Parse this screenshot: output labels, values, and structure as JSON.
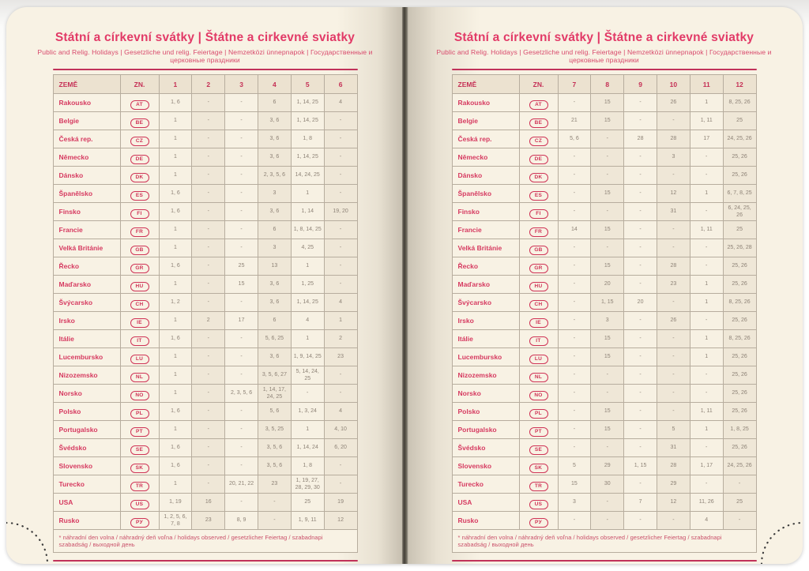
{
  "colors": {
    "accent_red": "#d63a60",
    "title_pink": "#e23a67",
    "page_cream": "#f8f2e4",
    "cell_shade": "#efe7d7",
    "table_border": "#b7ad9e",
    "number_gray": "#8d8276",
    "spine_dark": "#403c33"
  },
  "left_page": {
    "title": "Státní a církevní svátky | Štátne a cirkevné sviatky",
    "subtitle": "Public and Relig. Holidays | Gesetzliche und relig. Feiertage | Nemzetközi ünnepnapok | Государственные и церковные праздники",
    "columns": [
      "ZEMĚ",
      "ZN.",
      "1",
      "2",
      "3",
      "4",
      "5",
      "6"
    ],
    "rows": [
      {
        "country": "Rakousko",
        "code": "AT",
        "months": [
          "1, 6",
          "-",
          "-",
          "6",
          "1, 14, 25",
          "4"
        ]
      },
      {
        "country": "Belgie",
        "code": "BE",
        "months": [
          "1",
          "-",
          "-",
          "3, 6",
          "1, 14, 25",
          "-"
        ]
      },
      {
        "country": "Česká rep.",
        "code": "CZ",
        "months": [
          "1",
          "-",
          "-",
          "3, 6",
          "1, 8",
          "-"
        ]
      },
      {
        "country": "Německo",
        "code": "DE",
        "months": [
          "1",
          "-",
          "-",
          "3, 6",
          "1, 14, 25",
          "-"
        ]
      },
      {
        "country": "Dánsko",
        "code": "DK",
        "months": [
          "1",
          "-",
          "-",
          "2, 3, 5, 6",
          "14, 24, 25",
          "-"
        ]
      },
      {
        "country": "Španělsko",
        "code": "ES",
        "months": [
          "1, 6",
          "-",
          "-",
          "3",
          "1",
          "-"
        ]
      },
      {
        "country": "Finsko",
        "code": "FI",
        "months": [
          "1, 6",
          "-",
          "-",
          "3, 6",
          "1, 14",
          "19, 20"
        ]
      },
      {
        "country": "Francie",
        "code": "FR",
        "months": [
          "1",
          "-",
          "-",
          "6",
          "1, 8, 14, 25",
          "-"
        ]
      },
      {
        "country": "Velká Británie",
        "code": "GB",
        "months": [
          "1",
          "-",
          "-",
          "3",
          "4, 25",
          "-"
        ]
      },
      {
        "country": "Řecko",
        "code": "GR",
        "months": [
          "1, 6",
          "-",
          "25",
          "13",
          "1",
          "-"
        ]
      },
      {
        "country": "Maďarsko",
        "code": "HU",
        "months": [
          "1",
          "-",
          "15",
          "3, 6",
          "1, 25",
          "-"
        ]
      },
      {
        "country": "Švýcarsko",
        "code": "CH",
        "months": [
          "1, 2",
          "-",
          "-",
          "3, 6",
          "1, 14, 25",
          "4"
        ]
      },
      {
        "country": "Irsko",
        "code": "IE",
        "months": [
          "1",
          "2",
          "17",
          "6",
          "4",
          "1"
        ]
      },
      {
        "country": "Itálie",
        "code": "IT",
        "months": [
          "1, 6",
          "-",
          "-",
          "5, 6, 25",
          "1",
          "2"
        ]
      },
      {
        "country": "Lucembursko",
        "code": "LU",
        "months": [
          "1",
          "-",
          "-",
          "3, 6",
          "1, 9, 14, 25",
          "23"
        ]
      },
      {
        "country": "Nizozemsko",
        "code": "NL",
        "months": [
          "1",
          "-",
          "-",
          "3, 5, 6, 27",
          "5, 14, 24, 25",
          "-"
        ]
      },
      {
        "country": "Norsko",
        "code": "NO",
        "months": [
          "1",
          "-",
          "2, 3, 5, 6",
          "1, 14, 17, 24, 25",
          "-",
          "-"
        ]
      },
      {
        "country": "Polsko",
        "code": "PL",
        "months": [
          "1, 6",
          "-",
          "-",
          "5, 6",
          "1, 3, 24",
          "4"
        ]
      },
      {
        "country": "Portugalsko",
        "code": "PT",
        "months": [
          "1",
          "-",
          "-",
          "3, 5, 25",
          "1",
          "4, 10"
        ]
      },
      {
        "country": "Švédsko",
        "code": "SE",
        "months": [
          "1, 6",
          "-",
          "-",
          "3, 5, 6",
          "1, 14, 24",
          "6, 20"
        ]
      },
      {
        "country": "Slovensko",
        "code": "SK",
        "months": [
          "1, 6",
          "-",
          "-",
          "3, 5, 6",
          "1, 8",
          "-"
        ]
      },
      {
        "country": "Turecko",
        "code": "TR",
        "months": [
          "1",
          "-",
          "20, 21, 22",
          "23",
          "1, 19, 27, 28, 29, 30",
          "-"
        ]
      },
      {
        "country": "USA",
        "code": "US",
        "months": [
          "1, 19",
          "16",
          "-",
          "-",
          "25",
          "19"
        ]
      },
      {
        "country": "Rusko",
        "code": "РУ",
        "months": [
          "1, 2, 5, 6, 7, 8",
          "23",
          "8, 9",
          "-",
          "1, 9, 11",
          "12"
        ]
      }
    ],
    "footnote": "* náhradní den volna / náhradný deň voľna / holidays observed / gesetzlicher Feiertag / szabadnapi szabadság / выходной день"
  },
  "right_page": {
    "title": "Státní a církevní svátky | Štátne a cirkevné sviatky",
    "subtitle": "Public and Relig. Holidays | Gesetzliche und relig. Feiertage | Nemzetközi ünnepnapok | Государственные и церковные праздники",
    "columns": [
      "ZEMĚ",
      "ZN.",
      "7",
      "8",
      "9",
      "10",
      "11",
      "12"
    ],
    "rows": [
      {
        "country": "Rakousko",
        "code": "AT",
        "months": [
          "-",
          "15",
          "-",
          "26",
          "1",
          "8, 25, 26"
        ]
      },
      {
        "country": "Belgie",
        "code": "BE",
        "months": [
          "21",
          "15",
          "-",
          "-",
          "1, 11",
          "25"
        ]
      },
      {
        "country": "Česká rep.",
        "code": "CZ",
        "months": [
          "5, 6",
          "-",
          "28",
          "28",
          "17",
          "24, 25, 26"
        ]
      },
      {
        "country": "Německo",
        "code": "DE",
        "months": [
          "-",
          "-",
          "-",
          "3",
          "-",
          "25, 26"
        ]
      },
      {
        "country": "Dánsko",
        "code": "DK",
        "months": [
          "-",
          "-",
          "-",
          "-",
          "-",
          "25, 26"
        ]
      },
      {
        "country": "Španělsko",
        "code": "ES",
        "months": [
          "-",
          "15",
          "-",
          "12",
          "1",
          "6, 7, 8, 25"
        ]
      },
      {
        "country": "Finsko",
        "code": "FI",
        "months": [
          "-",
          "-",
          "-",
          "31",
          "-",
          "6, 24, 25, 26"
        ]
      },
      {
        "country": "Francie",
        "code": "FR",
        "months": [
          "14",
          "15",
          "-",
          "-",
          "1, 11",
          "25"
        ]
      },
      {
        "country": "Velká Británie",
        "code": "GB",
        "months": [
          "-",
          "-",
          "-",
          "-",
          "-",
          "25, 26, 28"
        ]
      },
      {
        "country": "Řecko",
        "code": "GR",
        "months": [
          "-",
          "15",
          "-",
          "28",
          "-",
          "25, 26"
        ]
      },
      {
        "country": "Maďarsko",
        "code": "HU",
        "months": [
          "-",
          "20",
          "-",
          "23",
          "1",
          "25, 26"
        ]
      },
      {
        "country": "Švýcarsko",
        "code": "CH",
        "months": [
          "-",
          "1, 15",
          "20",
          "-",
          "1",
          "8, 25, 26"
        ]
      },
      {
        "country": "Irsko",
        "code": "IE",
        "months": [
          "-",
          "3",
          "-",
          "26",
          "-",
          "25, 26"
        ]
      },
      {
        "country": "Itálie",
        "code": "IT",
        "months": [
          "-",
          "15",
          "-",
          "-",
          "1",
          "8, 25, 26"
        ]
      },
      {
        "country": "Lucembursko",
        "code": "LU",
        "months": [
          "-",
          "15",
          "-",
          "-",
          "1",
          "25, 26"
        ]
      },
      {
        "country": "Nizozemsko",
        "code": "NL",
        "months": [
          "-",
          "-",
          "-",
          "-",
          "-",
          "25, 26"
        ]
      },
      {
        "country": "Norsko",
        "code": "NO",
        "months": [
          "-",
          "-",
          "-",
          "-",
          "-",
          "25, 26"
        ]
      },
      {
        "country": "Polsko",
        "code": "PL",
        "months": [
          "-",
          "15",
          "-",
          "-",
          "1, 11",
          "25, 26"
        ]
      },
      {
        "country": "Portugalsko",
        "code": "PT",
        "months": [
          "-",
          "15",
          "-",
          "5",
          "1",
          "1, 8, 25"
        ]
      },
      {
        "country": "Švédsko",
        "code": "SE",
        "months": [
          "-",
          "-",
          "-",
          "31",
          "-",
          "25, 26"
        ]
      },
      {
        "country": "Slovensko",
        "code": "SK",
        "months": [
          "5",
          "29",
          "1, 15",
          "28",
          "1, 17",
          "24, 25, 26"
        ]
      },
      {
        "country": "Turecko",
        "code": "TR",
        "months": [
          "15",
          "30",
          "-",
          "29",
          "-",
          "-"
        ]
      },
      {
        "country": "USA",
        "code": "US",
        "months": [
          "3",
          "-",
          "7",
          "12",
          "11, 26",
          "25"
        ]
      },
      {
        "country": "Rusko",
        "code": "РУ",
        "months": [
          "-",
          "-",
          "-",
          "-",
          "4",
          "-"
        ]
      }
    ],
    "footnote": "* náhradní den volna / náhradný deň voľna / holidays observed / gesetzlicher Feiertag / szabadnapi szabadság / выходной день"
  }
}
